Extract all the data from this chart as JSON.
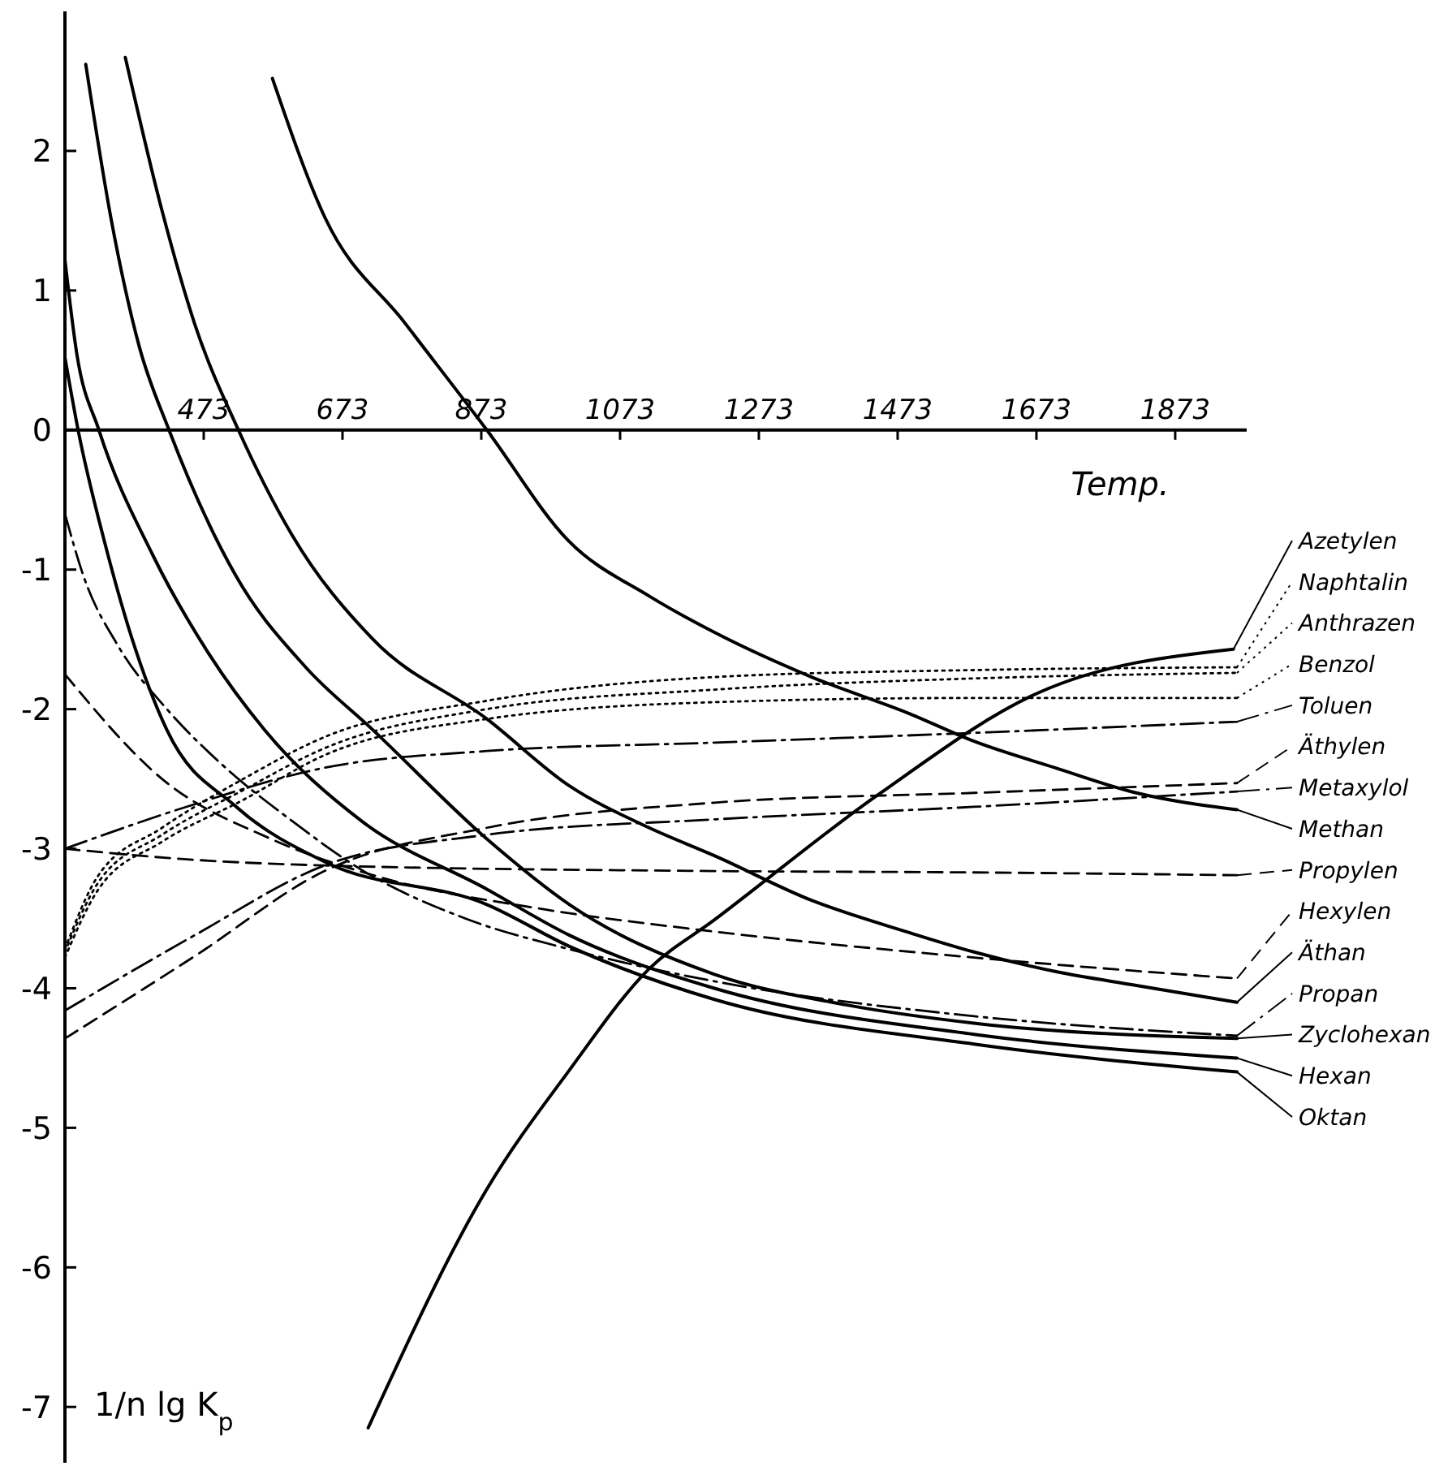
{
  "chart_data": {
    "type": "line",
    "xlabel": "Temp.",
    "ylabel": "1/n lg K$_{p}$",
    "xlim": [
      273,
      1976
    ],
    "ylim": [
      -7.4,
      3
    ],
    "xticks": [
      473,
      673,
      873,
      1073,
      1273,
      1473,
      1673,
      1873
    ],
    "yticks": [
      -7,
      -6,
      -5,
      -4,
      -3,
      -2,
      -1,
      0,
      1,
      2
    ],
    "grid": false,
    "legend": "right",
    "series": [
      {
        "name": "Azetylen",
        "color": "#000000",
        "line_style": "solid",
        "x": [
          710,
          881,
          998,
          1115,
          1209,
          1443,
          1677,
          1957
        ],
        "values": [
          -7.15,
          -5.44,
          -4.6,
          -3.86,
          -3.51,
          -2.62,
          -1.88,
          -1.57
        ]
      },
      {
        "name": "Naphtalin",
        "color": "#000000",
        "line_style": "dotted",
        "x": [
          273,
          320,
          413,
          530,
          647,
          881,
          1209,
          1583,
          1962
        ],
        "values": [
          -3.72,
          -3.2,
          -2.85,
          -2.5,
          -2.2,
          -1.94,
          -1.77,
          -1.72,
          -1.7
        ]
      },
      {
        "name": "Anthrazen",
        "color": "#000000",
        "line_style": "dotted",
        "x": [
          273,
          320,
          413,
          530,
          647,
          881,
          1209,
          1583,
          1962
        ],
        "values": [
          -3.74,
          -3.25,
          -2.9,
          -2.58,
          -2.28,
          -2.0,
          -1.86,
          -1.78,
          -1.74
        ]
      },
      {
        "name": "Benzol",
        "color": "#000000",
        "line_style": "dotted",
        "x": [
          273,
          320,
          413,
          530,
          647,
          881,
          1209,
          1583,
          1962
        ],
        "values": [
          -3.78,
          -3.3,
          -2.95,
          -2.65,
          -2.33,
          -2.07,
          -1.95,
          -1.92,
          -1.92
        ]
      },
      {
        "name": "Toluen",
        "color": "#000000",
        "line_style": "dashdot",
        "x": [
          273,
          448,
          647,
          881,
          1209,
          1583,
          1962
        ],
        "values": [
          -3.0,
          -2.7,
          -2.42,
          -2.3,
          -2.24,
          -2.17,
          -2.09
        ]
      },
      {
        "name": "Äthylen",
        "color": "#000000",
        "line_style": "dashed",
        "x": [
          273,
          460,
          647,
          881,
          1209,
          1583,
          1962
        ],
        "values": [
          -4.36,
          -3.77,
          -3.16,
          -2.85,
          -2.67,
          -2.6,
          -2.53
        ]
      },
      {
        "name": "Metaxylol",
        "color": "#000000",
        "line_style": "dashdot",
        "x": [
          273,
          460,
          647,
          881,
          1209,
          1583,
          1962
        ],
        "values": [
          -4.16,
          -3.62,
          -3.12,
          -2.9,
          -2.79,
          -2.7,
          -2.59
        ]
      },
      {
        "name": "Methan",
        "color": "#000000",
        "line_style": "solid",
        "x": [
          572,
          647,
          764,
          881,
          998,
          1115,
          1209,
          1349,
          1489,
          1583,
          1700,
          1817,
          1962
        ],
        "values": [
          2.52,
          1.53,
          0.76,
          0,
          -0.79,
          -1.19,
          -1.45,
          -1.77,
          -2.03,
          -2.23,
          -2.42,
          -2.6,
          -2.72
        ]
      },
      {
        "name": "Propylen",
        "color": "#000000",
        "line_style": "dashed",
        "x": [
          273,
          460,
          647,
          1209,
          1583,
          1962
        ],
        "values": [
          -3.0,
          -3.08,
          -3.12,
          -3.16,
          -3.17,
          -3.19
        ]
      },
      {
        "name": "Hexylen",
        "color": "#000000",
        "line_style": "dashed",
        "x": [
          273,
          413,
          570,
          724,
          958,
          1185,
          1583,
          1962
        ],
        "values": [
          -1.75,
          -2.5,
          -2.93,
          -3.2,
          -3.43,
          -3.58,
          -3.78,
          -3.93
        ]
      },
      {
        "name": "Äthan",
        "color": "#000000",
        "line_style": "solid",
        "x": [
          360,
          413,
          460,
          523,
          600,
          717,
          881,
          1000,
          1115,
          1209,
          1349,
          1489,
          1583,
          1700,
          1817,
          1962
        ],
        "values": [
          2.67,
          1.57,
          0.76,
          0,
          -0.75,
          -1.5,
          -2.07,
          -2.55,
          -2.85,
          -3.05,
          -3.37,
          -3.6,
          -3.74,
          -3.88,
          -3.98,
          -4.1
        ]
      },
      {
        "name": "Propan",
        "color": "#000000",
        "line_style": "dashdot",
        "x": [
          273,
          300,
          350,
          420,
          500,
          600,
          700,
          850,
          1000,
          1209,
          1583,
          1962
        ],
        "values": [
          -0.6,
          -1.05,
          -1.55,
          -2.0,
          -2.4,
          -2.8,
          -3.15,
          -3.5,
          -3.72,
          -3.95,
          -4.2,
          -4.34
        ]
      },
      {
        "name": "Zyclohexan",
        "color": "#000000",
        "line_style": "solid",
        "x": [
          303,
          340,
          380,
          423,
          520,
          620,
          717,
          881,
          1000,
          1209,
          1400,
          1583,
          1962
        ],
        "values": [
          2.62,
          1.5,
          0.6,
          0,
          -1.05,
          -1.7,
          -2.15,
          -2.93,
          -3.4,
          -3.9,
          -4.12,
          -4.25,
          -4.36
        ]
      },
      {
        "name": "Hexan",
        "color": "#000000",
        "line_style": "solid",
        "x": [
          273,
          290,
          322,
          400,
          480,
          561,
          700,
          881,
          1000,
          1209,
          1583,
          1962
        ],
        "values": [
          1.22,
          0.55,
          0,
          -0.9,
          -1.6,
          -2.15,
          -2.8,
          -3.29,
          -3.62,
          -4.0,
          -4.33,
          -4.5
        ]
      },
      {
        "name": "Oktan",
        "color": "#000000",
        "line_style": "solid",
        "x": [
          273,
          292,
          330,
          370,
          420,
          520,
          650,
          881,
          1000,
          1209,
          1583,
          1962
        ],
        "values": [
          0.52,
          0,
          -0.8,
          -1.5,
          -2.15,
          -2.7,
          -3.1,
          -3.4,
          -3.7,
          -4.08,
          -4.4,
          -4.6
        ]
      }
    ]
  }
}
